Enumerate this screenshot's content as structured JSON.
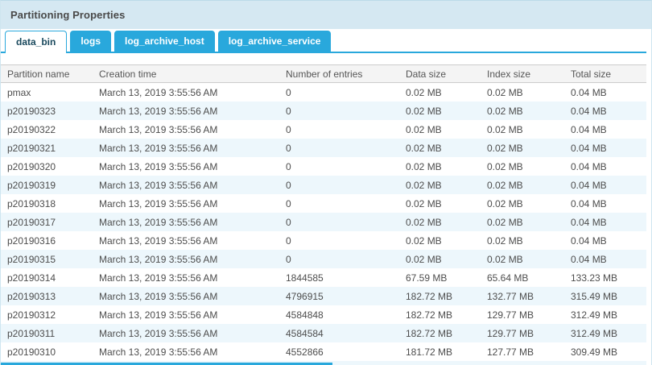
{
  "panel": {
    "title": "Partitioning Properties"
  },
  "tabs": [
    {
      "label": "data_bin",
      "active": true
    },
    {
      "label": "logs",
      "active": false
    },
    {
      "label": "log_archive_host",
      "active": false
    },
    {
      "label": "log_archive_service",
      "active": false
    }
  ],
  "table": {
    "columns": [
      "Partition name",
      "Creation time",
      "Number of entries",
      "Data size",
      "Index size",
      "Total size"
    ],
    "rows": [
      {
        "name": "pmax",
        "creation": "March 13, 2019 3:55:56 AM",
        "entries": "0",
        "data_size": "0.02 MB",
        "index_size": "0.02 MB",
        "total_size": "0.04 MB"
      },
      {
        "name": "p20190323",
        "creation": "March 13, 2019 3:55:56 AM",
        "entries": "0",
        "data_size": "0.02 MB",
        "index_size": "0.02 MB",
        "total_size": "0.04 MB"
      },
      {
        "name": "p20190322",
        "creation": "March 13, 2019 3:55:56 AM",
        "entries": "0",
        "data_size": "0.02 MB",
        "index_size": "0.02 MB",
        "total_size": "0.04 MB"
      },
      {
        "name": "p20190321",
        "creation": "March 13, 2019 3:55:56 AM",
        "entries": "0",
        "data_size": "0.02 MB",
        "index_size": "0.02 MB",
        "total_size": "0.04 MB"
      },
      {
        "name": "p20190320",
        "creation": "March 13, 2019 3:55:56 AM",
        "entries": "0",
        "data_size": "0.02 MB",
        "index_size": "0.02 MB",
        "total_size": "0.04 MB"
      },
      {
        "name": "p20190319",
        "creation": "March 13, 2019 3:55:56 AM",
        "entries": "0",
        "data_size": "0.02 MB",
        "index_size": "0.02 MB",
        "total_size": "0.04 MB"
      },
      {
        "name": "p20190318",
        "creation": "March 13, 2019 3:55:56 AM",
        "entries": "0",
        "data_size": "0.02 MB",
        "index_size": "0.02 MB",
        "total_size": "0.04 MB"
      },
      {
        "name": "p20190317",
        "creation": "March 13, 2019 3:55:56 AM",
        "entries": "0",
        "data_size": "0.02 MB",
        "index_size": "0.02 MB",
        "total_size": "0.04 MB"
      },
      {
        "name": "p20190316",
        "creation": "March 13, 2019 3:55:56 AM",
        "entries": "0",
        "data_size": "0.02 MB",
        "index_size": "0.02 MB",
        "total_size": "0.04 MB"
      },
      {
        "name": "p20190315",
        "creation": "March 13, 2019 3:55:56 AM",
        "entries": "0",
        "data_size": "0.02 MB",
        "index_size": "0.02 MB",
        "total_size": "0.04 MB"
      },
      {
        "name": "p20190314",
        "creation": "March 13, 2019 3:55:56 AM",
        "entries": "1844585",
        "data_size": "67.59 MB",
        "index_size": "65.64 MB",
        "total_size": "133.23 MB"
      },
      {
        "name": "p20190313",
        "creation": "March 13, 2019 3:55:56 AM",
        "entries": "4796915",
        "data_size": "182.72 MB",
        "index_size": "132.77 MB",
        "total_size": "315.49 MB"
      },
      {
        "name": "p20190312",
        "creation": "March 13, 2019 3:55:56 AM",
        "entries": "4584848",
        "data_size": "182.72 MB",
        "index_size": "129.77 MB",
        "total_size": "312.49 MB"
      },
      {
        "name": "p20190311",
        "creation": "March 13, 2019 3:55:56 AM",
        "entries": "4584584",
        "data_size": "182.72 MB",
        "index_size": "129.77 MB",
        "total_size": "312.49 MB"
      },
      {
        "name": "p20190310",
        "creation": "March 13, 2019 3:55:56 AM",
        "entries": "4552866",
        "data_size": "181.72 MB",
        "index_size": "127.77 MB",
        "total_size": "309.49 MB"
      }
    ]
  },
  "colors": {
    "accent": "#29a8dc",
    "titlebar_bg": "#d5e8f2",
    "stripe": "#edf7fc",
    "header_bg": "#f4f4f4"
  }
}
